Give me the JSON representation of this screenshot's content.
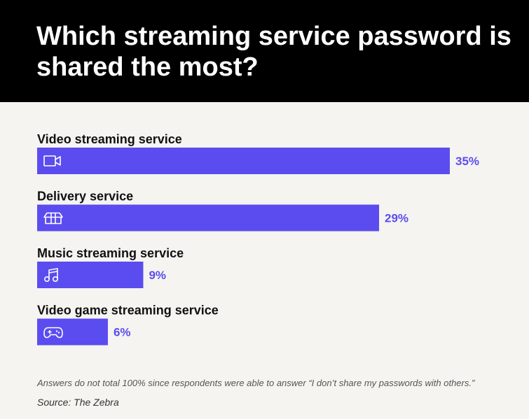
{
  "title": "Which streaming service password is shared the most?",
  "chart_data": {
    "type": "bar",
    "orientation": "horizontal",
    "categories": [
      "Video streaming service",
      "Delivery service",
      "Music streaming service",
      "Video game streaming service"
    ],
    "values": [
      35,
      29,
      9,
      6
    ],
    "value_labels": [
      "35%",
      "29%",
      "9%",
      "6%"
    ],
    "icons": [
      "video-camera-icon",
      "package-box-icon",
      "music-note-icon",
      "gamepad-icon"
    ],
    "unit": "%",
    "xlim": [
      0,
      35
    ],
    "grid": false,
    "legend": "none",
    "bar_color": "#5b4cf0",
    "label_color": "#5b4cf0"
  },
  "footnote": "Answers do not total 100% since respondents were able to answer “I don’t share my passwords with others.”",
  "source": "Source: The Zebra"
}
